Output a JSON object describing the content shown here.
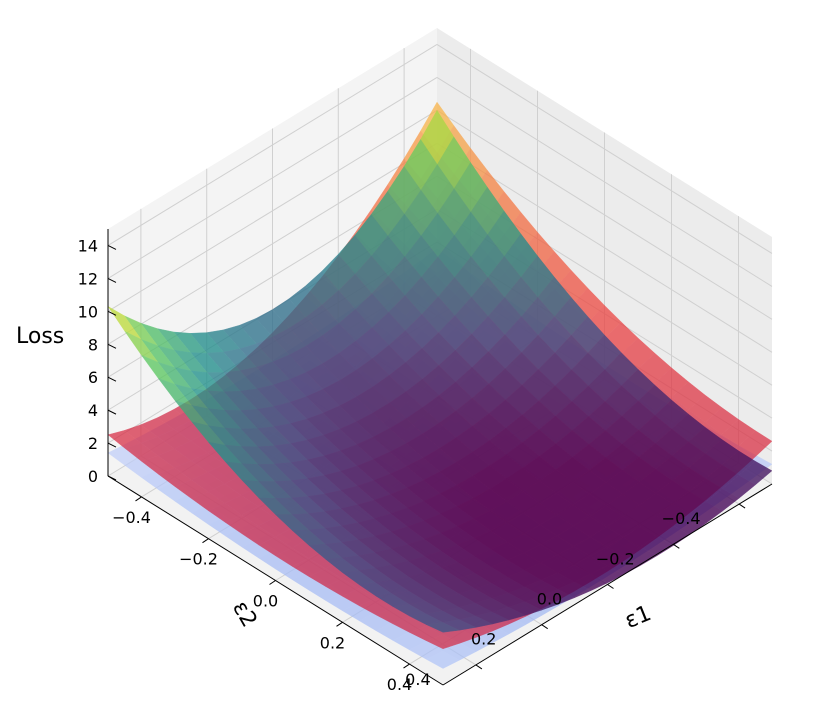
{
  "chart_data": {
    "type": "surface3d",
    "zlabel": "Loss",
    "xlabel": "ε1",
    "ylabel": "ε2",
    "x_ticks": [
      "−0.4",
      "−0.2",
      "0.0",
      "0.2",
      "0.4"
    ],
    "y_ticks": [
      "−0.4",
      "−0.2",
      "0.0",
      "0.2",
      "0.4"
    ],
    "z_ticks": [
      "0",
      "2",
      "4",
      "6",
      "8",
      "10",
      "12",
      "14"
    ],
    "xlim": [
      -0.5,
      0.5
    ],
    "ylim": [
      -0.5,
      0.5
    ],
    "zlim": [
      0,
      15
    ],
    "grid": true,
    "series": [
      {
        "colormap": "coolwarm-blue",
        "x": [
          -0.5,
          0,
          0.5
        ],
        "y": [
          -0.5,
          0,
          0.5
        ],
        "z": [
          [
            1.6,
            0.9,
            1.4
          ],
          [
            0.9,
            0.2,
            0.7
          ],
          [
            1.2,
            0.5,
            1.0
          ]
        ]
      },
      {
        "colormap": "inferno-red",
        "x": [
          -0.5,
          0,
          0.5
        ],
        "y": [
          -0.5,
          0,
          0.5
        ],
        "z": [
          [
            10.5,
            2.6,
            2.5
          ],
          [
            4.5,
            1.6,
            1.5
          ],
          [
            2.6,
            0.8,
            2.2
          ]
        ]
      },
      {
        "colormap": "viridis",
        "x": [
          -0.5,
          0,
          0.5
        ],
        "y": [
          -0.5,
          0,
          0.5
        ],
        "z": [
          [
            10.0,
            4.0,
            10.3
          ],
          [
            2.7,
            0.5,
            4.0
          ],
          [
            0.8,
            0.1,
            3.2
          ]
        ]
      }
    ]
  }
}
